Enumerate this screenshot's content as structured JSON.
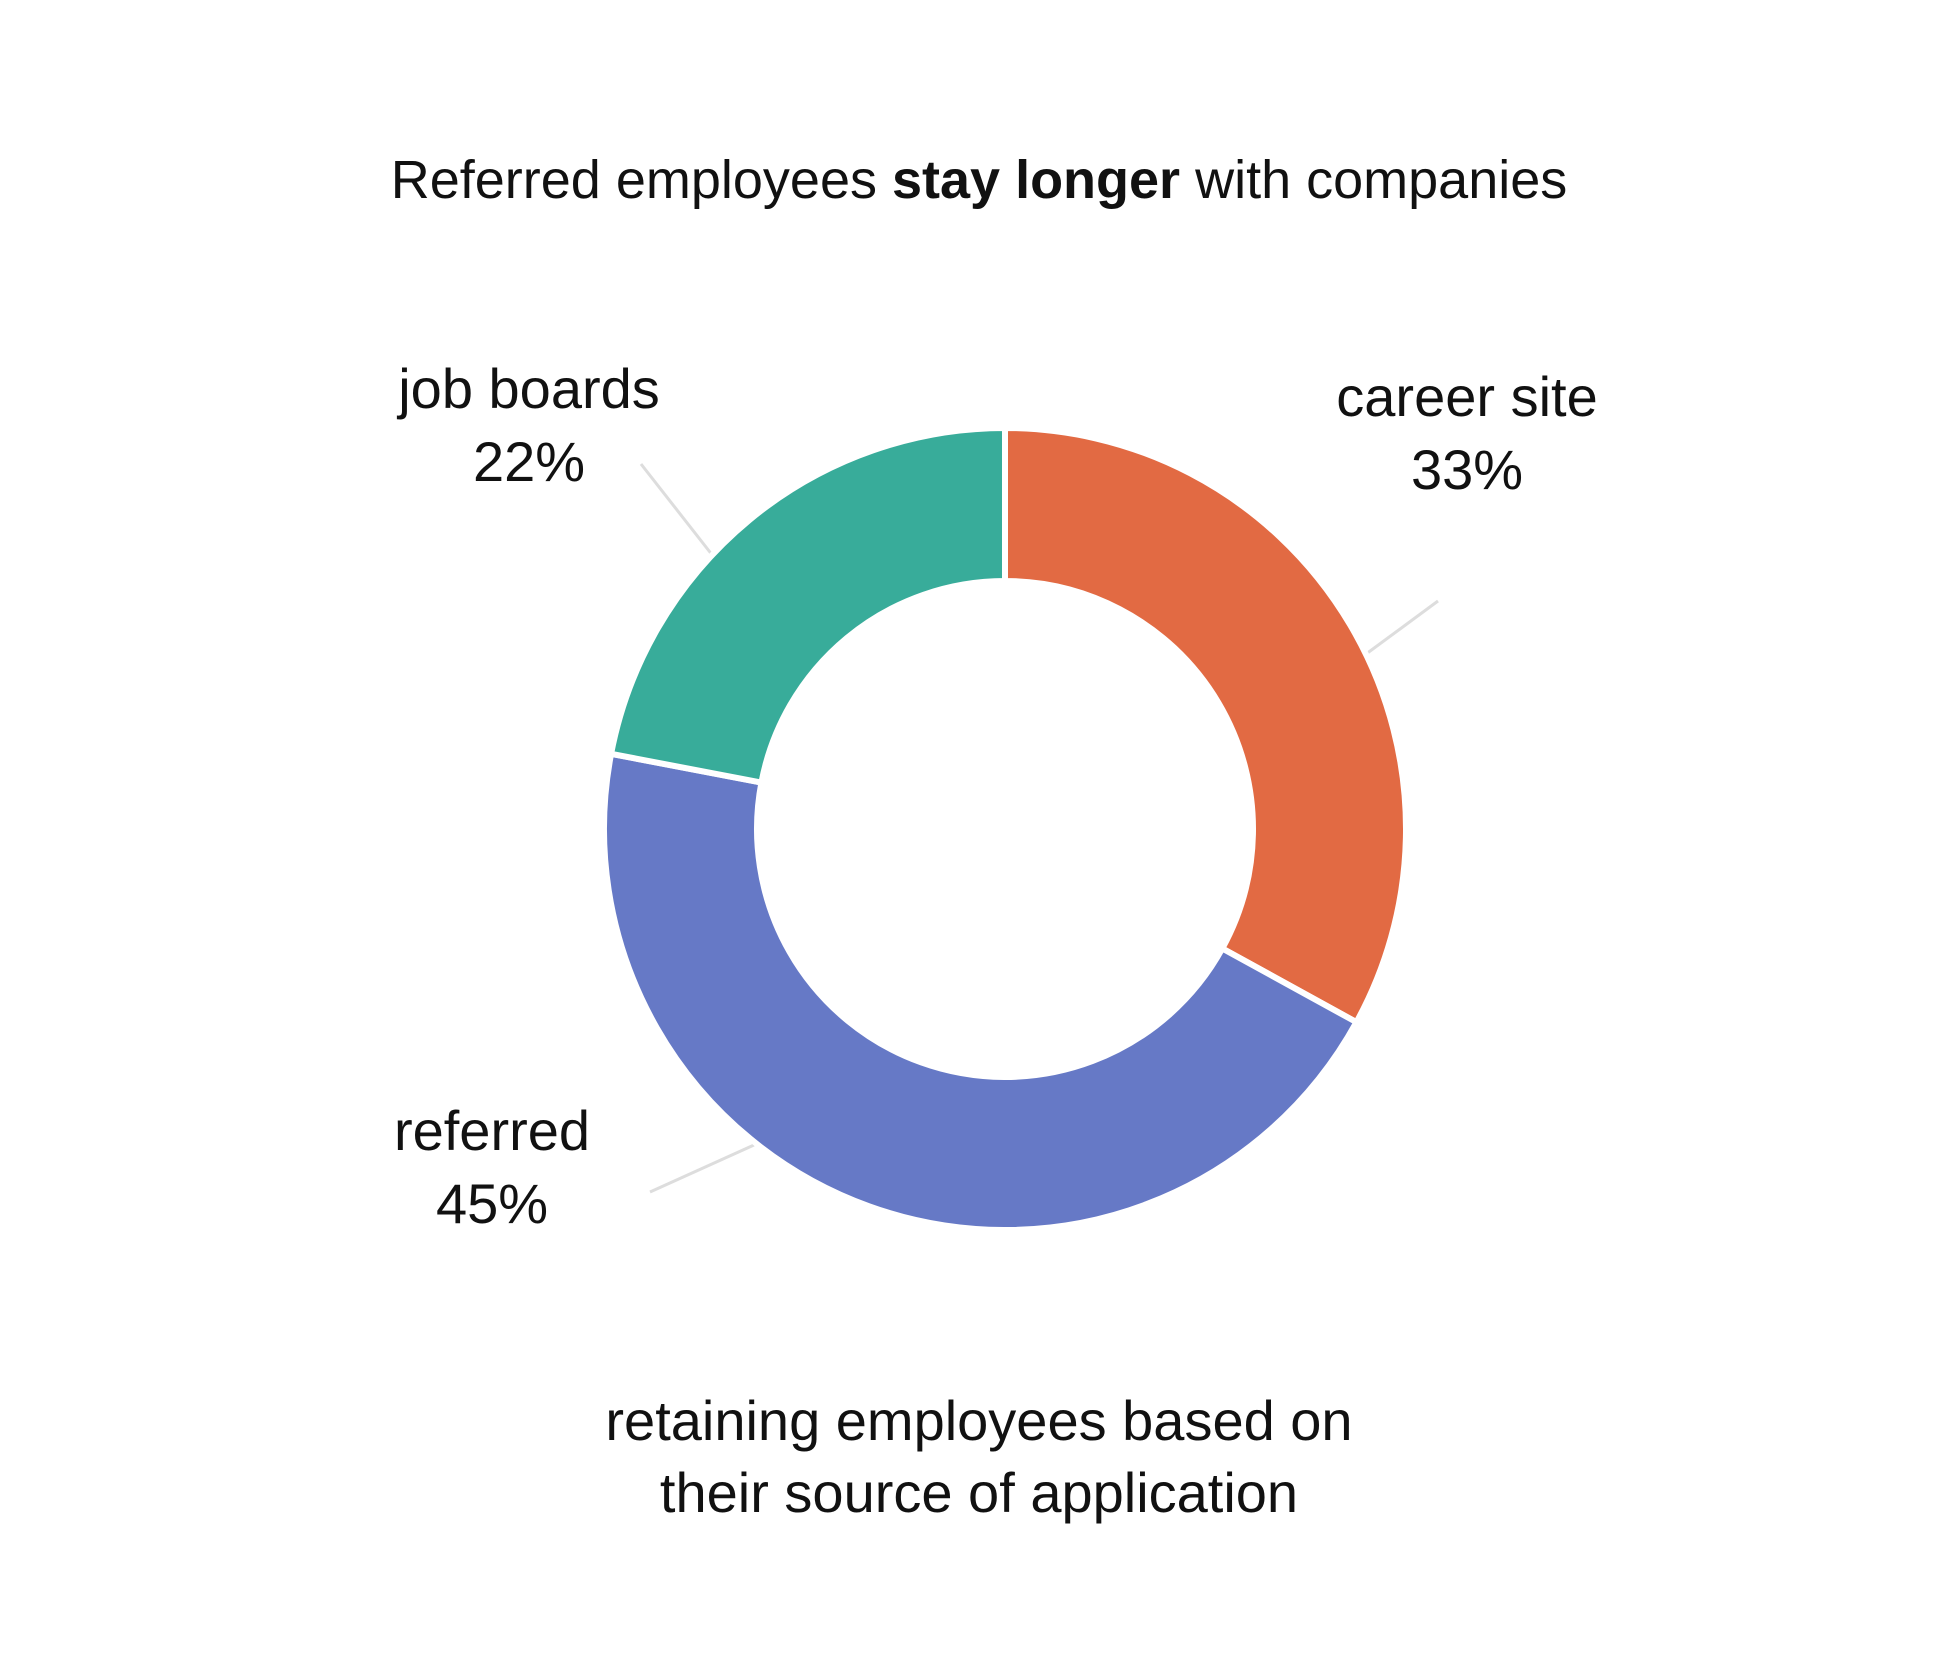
{
  "chart_data": {
    "type": "pie",
    "style": "donut",
    "title": {
      "prefix": "Referred employees ",
      "emphasis": "stay longer",
      "suffix": " with companies"
    },
    "caption": {
      "line1": "retaining employees based on",
      "line2": "their source of application"
    },
    "slices": [
      {
        "label": "career site",
        "value_label": "33%",
        "value": 33,
        "color": "#E26A43"
      },
      {
        "label": "referred",
        "value_label": "45%",
        "value": 45,
        "color": "#6679C6"
      },
      {
        "label": "job boards",
        "value_label": "22%",
        "value": 22,
        "color": "#38AC9A"
      }
    ],
    "start_direction": "top",
    "direction": "clockwise",
    "legend": "none",
    "leader_line_color": "#DDDDDD"
  }
}
